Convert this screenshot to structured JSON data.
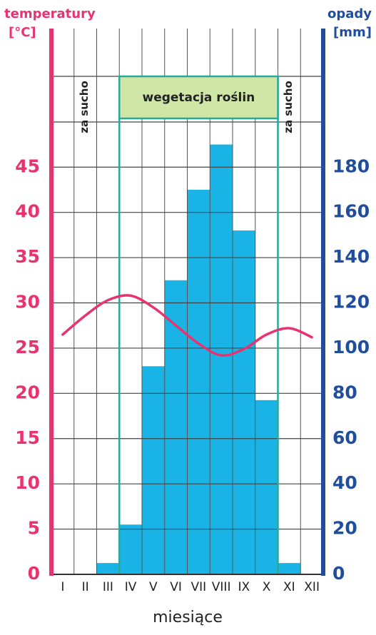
{
  "chart_data": {
    "type": "bar",
    "y_axis_label": [
      "temperatury",
      "[°C]"
    ],
    "y2_axis_label": [
      "opady",
      "[mm]"
    ],
    "x_axis_label": "miesiące",
    "categories": [
      "I",
      "II",
      "III",
      "IV",
      "V",
      "VI",
      "VII",
      "VIII",
      "IX",
      "X",
      "XI",
      "XII"
    ],
    "series": [
      {
        "name": "opady",
        "type": "bar",
        "axis": "y2",
        "color": "#1ab3e6",
        "values": [
          0,
          0,
          5,
          22,
          92,
          130,
          170,
          190,
          152,
          77,
          5,
          0
        ]
      },
      {
        "name": "temperatury",
        "type": "line",
        "axis": "y",
        "color": "#e8336f",
        "values": [
          26.5,
          28.6,
          30.3,
          30.8,
          29.5,
          27.5,
          25.5,
          24.2,
          24.9,
          26.5,
          27.2,
          26.2
        ]
      }
    ],
    "ylim": [
      0,
      60
    ],
    "yticks": [
      0,
      5,
      10,
      15,
      20,
      25,
      30,
      35,
      40,
      45
    ],
    "y2lim": [
      0,
      240
    ],
    "y2ticks": [
      0,
      20,
      40,
      60,
      80,
      100,
      120,
      140,
      160,
      180
    ],
    "y_color": "#e8336f",
    "y2_color": "#1f4e9c",
    "grid": true,
    "annotations": [
      "za sucho",
      "wegetacja roślin",
      "za sucho"
    ]
  }
}
